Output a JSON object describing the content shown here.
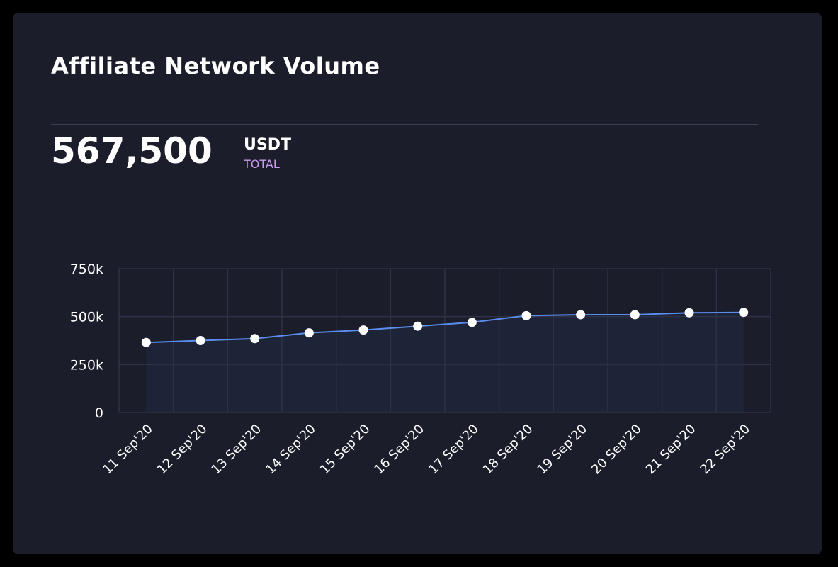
{
  "header": {
    "title": "Affiliate Network Volume"
  },
  "summary": {
    "value": "567,500",
    "unit": "USDT",
    "label": "TOTAL"
  },
  "colors": {
    "line": "#5b8def",
    "fill": "#1d2438",
    "grid": "#2e3146",
    "accent": "#c89cf0"
  },
  "chart_data": {
    "type": "area",
    "title": "",
    "categories": [
      "11 Sep'20",
      "12 Sep'20",
      "13 Sep'20",
      "14 Sep'20",
      "15 Sep'20",
      "16 Sep'20",
      "17 Sep'20",
      "18 Sep'20",
      "19 Sep'20",
      "20 Sep'20",
      "21 Sep'20",
      "22 Sep'20"
    ],
    "values": [
      365000,
      375000,
      385000,
      415000,
      430000,
      450000,
      470000,
      505000,
      510000,
      510000,
      520000,
      522000
    ],
    "yticks": [
      0,
      250000,
      500000,
      750000
    ],
    "ytick_labels": [
      "0",
      "250k",
      "500k",
      "750k"
    ],
    "ylim": [
      0,
      750000
    ],
    "grid": true,
    "xlabel": "",
    "ylabel": ""
  }
}
